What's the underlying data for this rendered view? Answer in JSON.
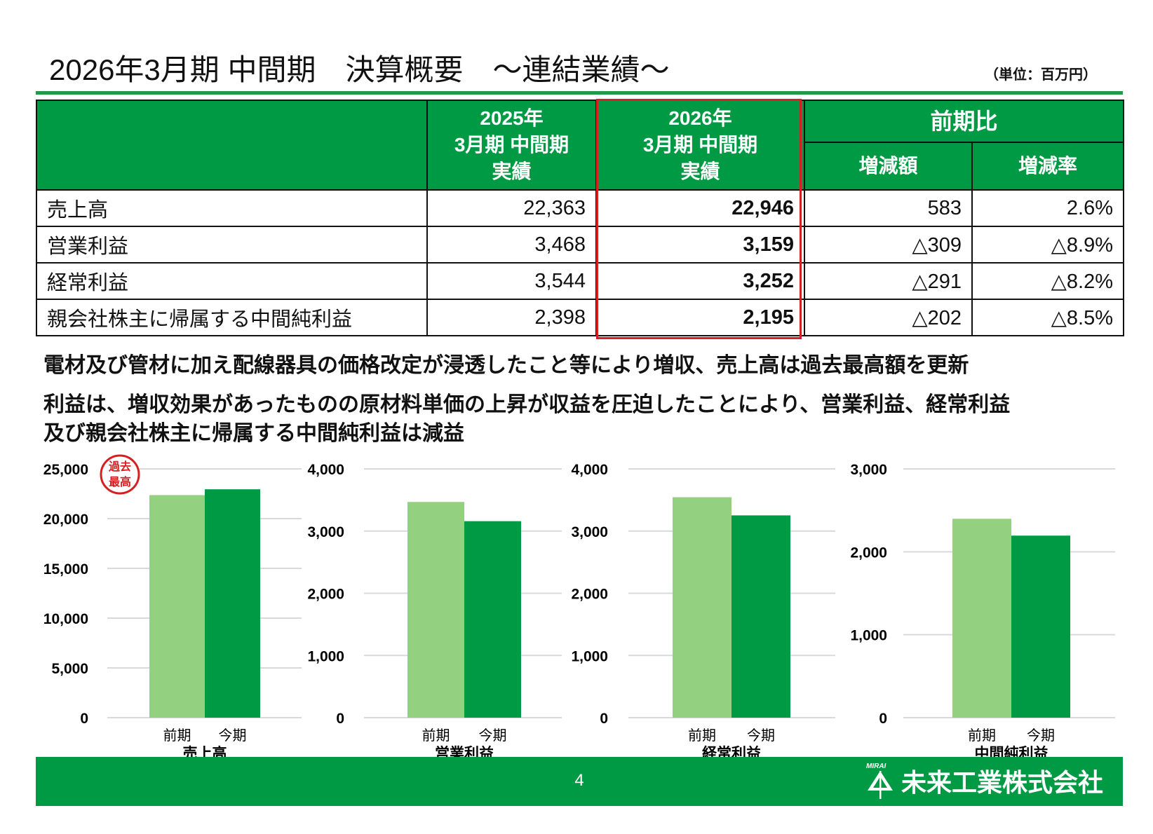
{
  "header": {
    "title": "2026年3月期 中間期　決算概要　～連結業績～",
    "unit": "（単位：百万円）"
  },
  "table": {
    "col_prev": "2025年\n3月期 中間期\n実績",
    "col_cur": "2026年\n3月期 中間期\n実績",
    "col_compare": "前期比",
    "col_diff": "増減額",
    "col_rate": "増減率",
    "rows": [
      {
        "label": "売上高",
        "prev": "22,363",
        "cur": "22,946",
        "diff": "583",
        "rate": "2.6%"
      },
      {
        "label": "営業利益",
        "prev": "3,468",
        "cur": "3,159",
        "diff": "△309",
        "rate": "△8.9%"
      },
      {
        "label": "経常利益",
        "prev": "3,544",
        "cur": "3,252",
        "diff": "△291",
        "rate": "△8.2%"
      },
      {
        "label": "親会社株主に帰属する中間純利益",
        "prev": "2,398",
        "cur": "2,195",
        "diff": "△202",
        "rate": "△8.5%"
      }
    ],
    "highlight_color": "#d42020"
  },
  "messages": [
    "電材及び管材に加え配線器具の価格改定が浸透したこと等により増収、売上高は過去最高額を更新",
    "利益は、増収効果があったものの原材料単価の上昇が収益を圧迫したことにより、営業利益、経常利益",
    "及び親会社株主に帰属する中間純利益は減益"
  ],
  "badge": {
    "text": "過去最高"
  },
  "colors": {
    "prev": "#93d07f",
    "cur": "#009a44",
    "brand": "#009a44",
    "grid": "#d9d9d9"
  },
  "chart_data": [
    {
      "type": "bar",
      "title": "売上高",
      "categories": [
        "前期",
        "今期"
      ],
      "values": [
        22363,
        22946
      ],
      "ylim": [
        0,
        25000
      ],
      "yticks": [
        0,
        5000,
        10000,
        15000,
        20000,
        25000
      ],
      "tick_labels": [
        "0",
        "5,000",
        "10,000",
        "15,000",
        "20,000",
        "25,000"
      ],
      "grid": true
    },
    {
      "type": "bar",
      "title": "営業利益",
      "categories": [
        "前期",
        "今期"
      ],
      "values": [
        3468,
        3159
      ],
      "ylim": [
        0,
        4000
      ],
      "yticks": [
        0,
        1000,
        2000,
        3000,
        4000
      ],
      "tick_labels": [
        "0",
        "1,000",
        "2,000",
        "3,000",
        "4,000"
      ],
      "grid": true
    },
    {
      "type": "bar",
      "title": "経常利益",
      "categories": [
        "前期",
        "今期"
      ],
      "values": [
        3544,
        3252
      ],
      "ylim": [
        0,
        4000
      ],
      "yticks": [
        0,
        1000,
        2000,
        3000,
        4000
      ],
      "tick_labels": [
        "0",
        "1,000",
        "2,000",
        "3,000",
        "4,000"
      ],
      "grid": true
    },
    {
      "type": "bar",
      "title": "中間純利益",
      "categories": [
        "前期",
        "今期"
      ],
      "values": [
        2398,
        2195
      ],
      "ylim": [
        0,
        3000
      ],
      "yticks": [
        0,
        1000,
        2000,
        3000
      ],
      "tick_labels": [
        "0",
        "1,000",
        "2,000",
        "3,000"
      ],
      "grid": true
    }
  ],
  "footer": {
    "page": "4",
    "company": "未来工業株式会社",
    "logo_text": "MIRAI"
  }
}
